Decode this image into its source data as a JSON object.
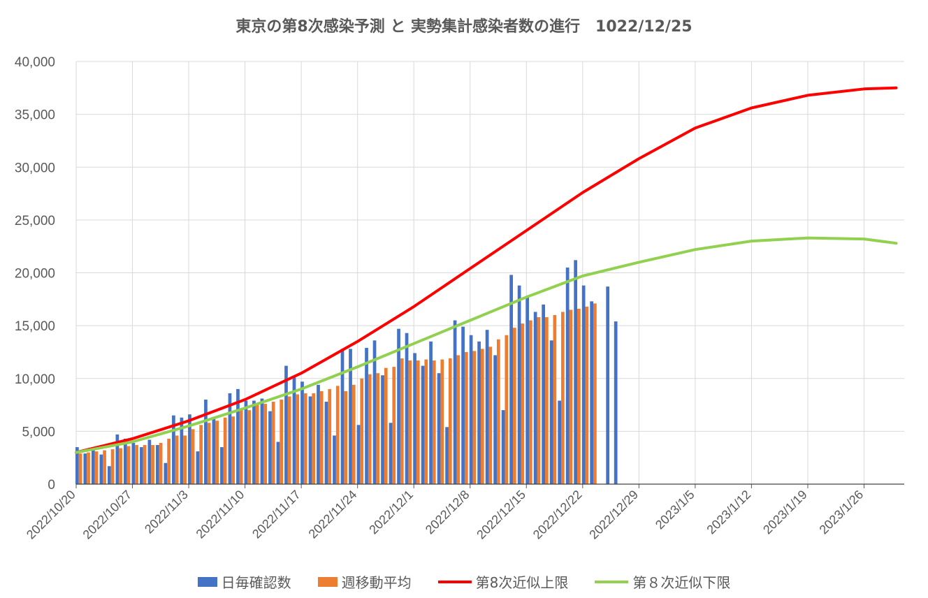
{
  "chart_data": {
    "type": "bar",
    "title": "東京の第8次感染予測 と 実勢集計感染者数の進行　1022/12/25",
    "ylim": [
      0,
      40000
    ],
    "y_ticks": [
      "0",
      "5,000",
      "10,000",
      "15,000",
      "20,000",
      "25,000",
      "30,000",
      "35,000",
      "40,000"
    ],
    "x_tick_labels": [
      "2022/10/20",
      "2022/10/27",
      "2022/11/3",
      "2022/11/10",
      "2022/11/17",
      "2022/11/24",
      "2022/12/1",
      "2022/12/8",
      "2022/12/15",
      "2022/12/22",
      "2022/12/29",
      "2023/1/5",
      "2023/1/12",
      "2023/1/19",
      "2023/1/26"
    ],
    "x_range": [
      "2022/10/20",
      "2023/1/31"
    ],
    "grid": true,
    "legend_position": "bottom",
    "series": [
      {
        "name": "日毎確認数",
        "type": "bar",
        "color": "#4472C4",
        "start_date": "2022/10/20",
        "values": [
          3500,
          2900,
          3200,
          2800,
          1700,
          4700,
          4300,
          3900,
          3500,
          4200,
          3700,
          2000,
          6500,
          6300,
          6600,
          3100,
          8000,
          6200,
          3500,
          8600,
          9000,
          7900,
          7900,
          8100,
          6900,
          4000,
          11200,
          10100,
          9700,
          8300,
          9400,
          7800,
          4600,
          12800,
          12800,
          5600,
          12900,
          13600,
          10300,
          5800,
          14700,
          14300,
          12400,
          11200,
          13500,
          10500,
          5400,
          15500,
          14900,
          14100,
          13500,
          14600,
          12200,
          7000,
          19800,
          18800,
          17700,
          16300,
          17000,
          13600,
          7900,
          20500,
          21200,
          18800,
          17300,
          0,
          18700,
          15400
        ]
      },
      {
        "name": "週移動平均",
        "type": "bar",
        "color": "#ED7D31",
        "start_date": "2022/10/20",
        "values": [
          2900,
          3000,
          3100,
          3200,
          3300,
          3400,
          3600,
          3700,
          3700,
          3700,
          3900,
          4300,
          4600,
          4600,
          5200,
          5600,
          5800,
          6000,
          6300,
          6400,
          7100,
          7000,
          7500,
          7600,
          7800,
          8000,
          8300,
          8500,
          8600,
          8600,
          8800,
          9000,
          9300,
          8800,
          9400,
          10000,
          10400,
          10500,
          11000,
          11100,
          11900,
          11700,
          11700,
          11800,
          11700,
          11800,
          11900,
          12200,
          12500,
          12600,
          12800,
          13000,
          13700,
          14100,
          14800,
          15200,
          15500,
          15800,
          15800,
          16000,
          16300,
          16500,
          16600,
          16800,
          17100
        ]
      },
      {
        "name": "第8次近似上限",
        "type": "line",
        "color": "#FF0000",
        "x_days": [
          0,
          7,
          14,
          21,
          28,
          35,
          42,
          49,
          56,
          63,
          70,
          77,
          84,
          91,
          98,
          102
        ],
        "values": [
          3000,
          4300,
          6000,
          8000,
          10500,
          13500,
          16800,
          20400,
          24000,
          27600,
          30800,
          33700,
          35600,
          36800,
          37400,
          37500
        ]
      },
      {
        "name": "第８次近似下限",
        "type": "line",
        "color": "#92D050",
        "x_days": [
          0,
          7,
          14,
          21,
          28,
          35,
          42,
          49,
          56,
          63,
          70,
          77,
          84,
          91,
          98,
          102
        ],
        "values": [
          3000,
          4000,
          5500,
          7200,
          9000,
          11100,
          13300,
          15500,
          17700,
          19700,
          21000,
          22200,
          23000,
          23300,
          23200,
          22800
        ]
      }
    ]
  }
}
